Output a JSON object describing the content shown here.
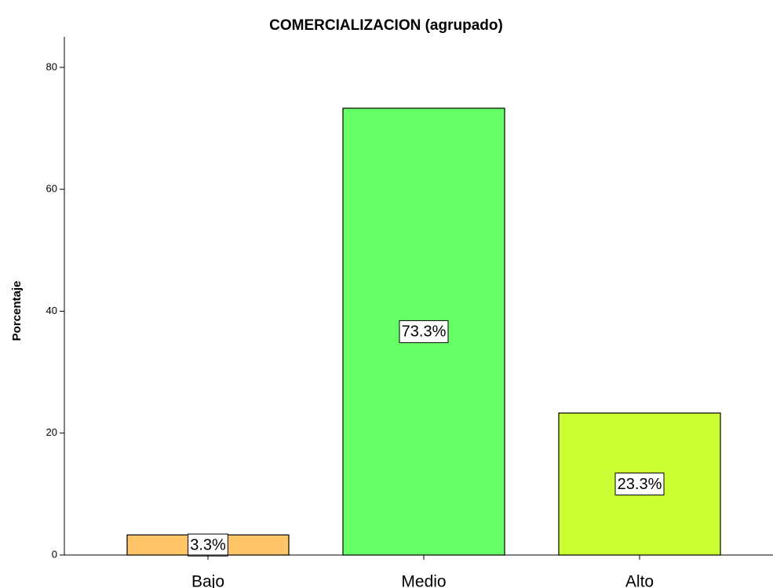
{
  "chart_data": {
    "type": "bar",
    "title": "COMERCIALIZACION (agrupado)",
    "y_label": "Porcentaje",
    "categories": [
      "Bajo",
      "Medio",
      "Alto"
    ],
    "values": [
      3.3,
      73.3,
      23.3
    ],
    "value_labels": [
      "3.3%",
      "73.3%",
      "23.3%"
    ],
    "colors": [
      "#ffc566",
      "#66ff66",
      "#ccff33"
    ],
    "ylim": [
      0,
      85
    ],
    "yticks": [
      0,
      20,
      40,
      60,
      80
    ],
    "grid": false
  }
}
